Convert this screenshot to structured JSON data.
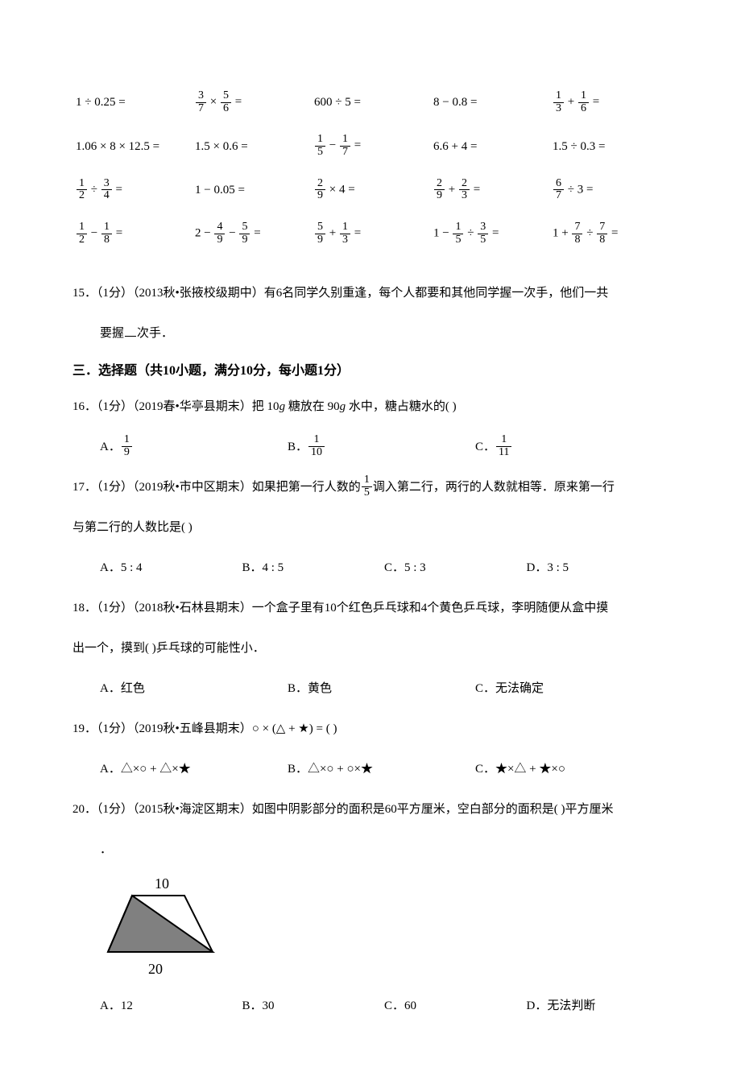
{
  "calc": {
    "rows": [
      [
        "1 ÷ 0.25 =",
        {
          "f": [
            "3",
            "7"
          ],
          "op": "×",
          "f2": [
            "5",
            "6"
          ],
          "eq": "="
        },
        "600 ÷ 5 =",
        "8 − 0.8 =",
        {
          "f": [
            "1",
            "3"
          ],
          "op": "+",
          "f2": [
            "1",
            "6"
          ],
          "eq": "="
        }
      ],
      [
        "1.06 × 8 × 12.5 =",
        "1.5 × 0.6 =",
        {
          "f": [
            "1",
            "5"
          ],
          "op": "−",
          "f2": [
            "1",
            "7"
          ],
          "eq": "="
        },
        "6.6 + 4 =",
        "1.5 ÷ 0.3 ="
      ],
      [
        {
          "f": [
            "1",
            "2"
          ],
          "op": "÷",
          "f2": [
            "3",
            "4"
          ],
          "eq": "="
        },
        "1 − 0.05 =",
        {
          "f": [
            "2",
            "9"
          ],
          "op": "× 4 ="
        },
        {
          "f": [
            "2",
            "9"
          ],
          "op": "+",
          "f2": [
            "2",
            "3"
          ],
          "eq": "="
        },
        {
          "f": [
            "6",
            "7"
          ],
          "op": "÷ 3 ="
        }
      ],
      [
        {
          "f": [
            "1",
            "2"
          ],
          "op": "−",
          "f2": [
            "1",
            "8"
          ],
          "eq": "="
        },
        {
          "pre": "2 −",
          "f": [
            "4",
            "9"
          ],
          "op": "−",
          "f2": [
            "5",
            "9"
          ],
          "eq": "="
        },
        {
          "f": [
            "5",
            "9"
          ],
          "op": "+",
          "f2": [
            "1",
            "3"
          ],
          "eq": "="
        },
        {
          "pre": "1 −",
          "f": [
            "1",
            "5"
          ],
          "op": "÷",
          "f2": [
            "3",
            "5"
          ],
          "eq": "="
        },
        {
          "pre": "1 +",
          "f": [
            "7",
            "8"
          ],
          "op": "÷",
          "f2": [
            "7",
            "8"
          ],
          "eq": "="
        }
      ]
    ]
  },
  "q15": {
    "num": "15．",
    "pts": "（1分）",
    "src": "（2013秋•张掖校级期中）",
    "text_a": "有6名同学久别重逢，每个人都要和其他同学握一次手，他们一共",
    "text_b": "要握",
    "text_c": "次手．"
  },
  "section3": "三．选择题（共10小题，满分10分，每小题1分）",
  "q16": {
    "num": "16．",
    "pts": "（1分）",
    "src": "（2019春•华亭县期末）",
    "text_a": "把 10",
    "text_b": " 糖放在 90",
    "text_c": " 水中，糖占糖水的(   )",
    "opts": {
      "A": {
        "label": "A．",
        "frac": [
          "1",
          "9"
        ]
      },
      "B": {
        "label": "B．",
        "frac": [
          "1",
          "10"
        ]
      },
      "C": {
        "label": "C．",
        "frac": [
          "1",
          "11"
        ]
      }
    }
  },
  "q17": {
    "num": "17．",
    "pts": "（1分）",
    "src": "（2019秋•市中区期末）",
    "text_a": "如果把第一行人数的",
    "text_b": "调入第二行，两行的人数就相等．原来第一行",
    "text_c": "与第二行的人数比是(   )",
    "frac": [
      "1",
      "5"
    ],
    "opts": {
      "A": "A．5 : 4",
      "B": "B．4 : 5",
      "C": "C．5 : 3",
      "D": "D．3 : 5"
    }
  },
  "q18": {
    "num": "18．",
    "pts": "（1分）",
    "src": "（2018秋•石林县期末）",
    "text_a": "一个盒子里有10个红色乒乓球和4个黄色乒乓球，李明随便从盒中摸",
    "text_b": "出一个，摸到(   )乒乓球的可能性小．",
    "opts": {
      "A": "A．红色",
      "B": "B．黄色",
      "C": "C．无法确定"
    }
  },
  "q19": {
    "num": "19．",
    "pts": "（1分）",
    "src": "（2019秋•五峰县期末）",
    "text": "○ × (△ + ★) = (   )",
    "opts": {
      "A": "A．△×○ + △×★",
      "B": "B．△×○ + ○×★",
      "C": "C．★×△ + ★×○"
    }
  },
  "q20": {
    "num": "20．",
    "pts": "（1分）",
    "src": "（2015秋•海淀区期末）",
    "text": "如图中阴影部分的面积是60平方厘米，空白部分的面积是(   )平方厘米",
    "fig": {
      "top_label": "10",
      "bottom_label": "20",
      "fill": "#808080",
      "bg": "#ffffff"
    },
    "opts": {
      "A": "A．12",
      "B": "B．30",
      "C": "C．60",
      "D": "D．无法判断"
    }
  }
}
